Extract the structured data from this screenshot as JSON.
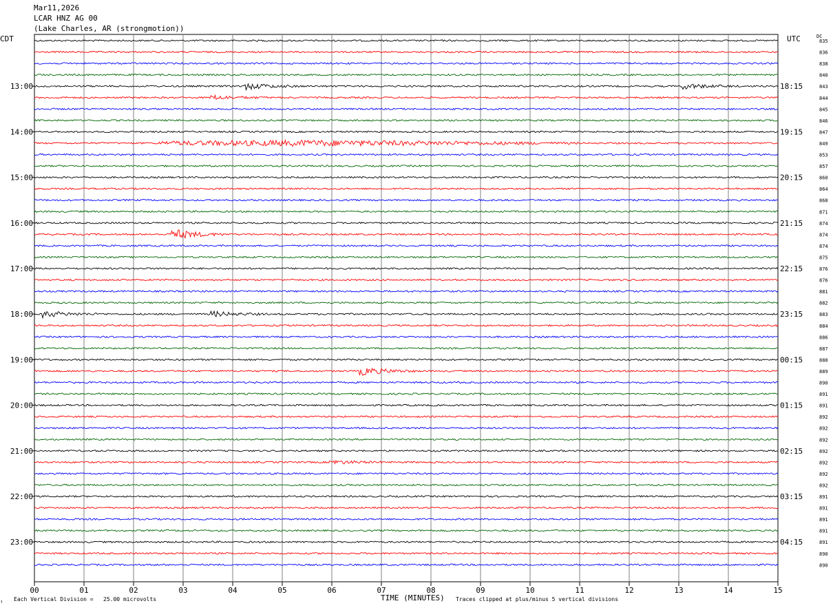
{
  "header": {
    "date": "Mar11,2026",
    "station": "LCAR HNZ AG 00",
    "location": "(Lake Charles, AR (strongmotion))"
  },
  "timezones": {
    "left": "CDT",
    "right": "UTC",
    "dc_label": "DC"
  },
  "chart_data": {
    "type": "line",
    "title": "Mar11,2026 LCAR HNZ AG 00 (Lake Charles, AR (strongmotion))",
    "xlabel": "TIME (MINUTES)",
    "x_ticks": [
      "00",
      "01",
      "02",
      "03",
      "04",
      "05",
      "06",
      "07",
      "08",
      "09",
      "10",
      "11",
      "12",
      "13",
      "14",
      "15"
    ],
    "xlim": [
      0,
      15
    ],
    "row_colors": [
      "#000000",
      "#ff0000",
      "#0000ff",
      "#006600"
    ],
    "left_time_labels": [
      "13:00",
      "14:00",
      "15:00",
      "16:00",
      "17:00",
      "18:00",
      "19:00",
      "20:00",
      "21:00",
      "22:00",
      "23:00"
    ],
    "right_time_labels": [
      "18:15",
      "19:15",
      "20:15",
      "21:15",
      "22:15",
      "23:15",
      "00:15",
      "01:15",
      "02:15",
      "03:15",
      "04:15"
    ],
    "dc_offsets": [
      835,
      836,
      838,
      840,
      843,
      844,
      845,
      846,
      847,
      849,
      853,
      857,
      860,
      864,
      868,
      871,
      874,
      874,
      874,
      875,
      876,
      876,
      881,
      882,
      883,
      884,
      886,
      887,
      888,
      889,
      890,
      891,
      891,
      892,
      892,
      892,
      892,
      892,
      892,
      892,
      891,
      891,
      891,
      891,
      891,
      890,
      890
    ],
    "events": [
      {
        "row": 4,
        "minute": 4.3,
        "amp": 0.6
      },
      {
        "row": 4,
        "minute": 13.1,
        "amp": 0.5
      },
      {
        "row": 5,
        "minute": 3.6,
        "amp": 0.4
      },
      {
        "row": 9,
        "minute": 4.5,
        "amp": 1.0
      },
      {
        "row": 17,
        "minute": 2.8,
        "amp": 1.0
      },
      {
        "row": 24,
        "minute": 0.2,
        "amp": 0.6
      },
      {
        "row": 24,
        "minute": 3.6,
        "amp": 0.5
      },
      {
        "row": 29,
        "minute": 6.6,
        "amp": 0.8
      },
      {
        "row": 37,
        "minute": 6.0,
        "amp": 0.4
      }
    ]
  },
  "footer": {
    "vertical_division": "Each Vertical Division =   25.00 microvolts",
    "clipping_note": "Traces clipped at plus/minus 5 vertical divisions",
    "logo_text": "↑"
  }
}
